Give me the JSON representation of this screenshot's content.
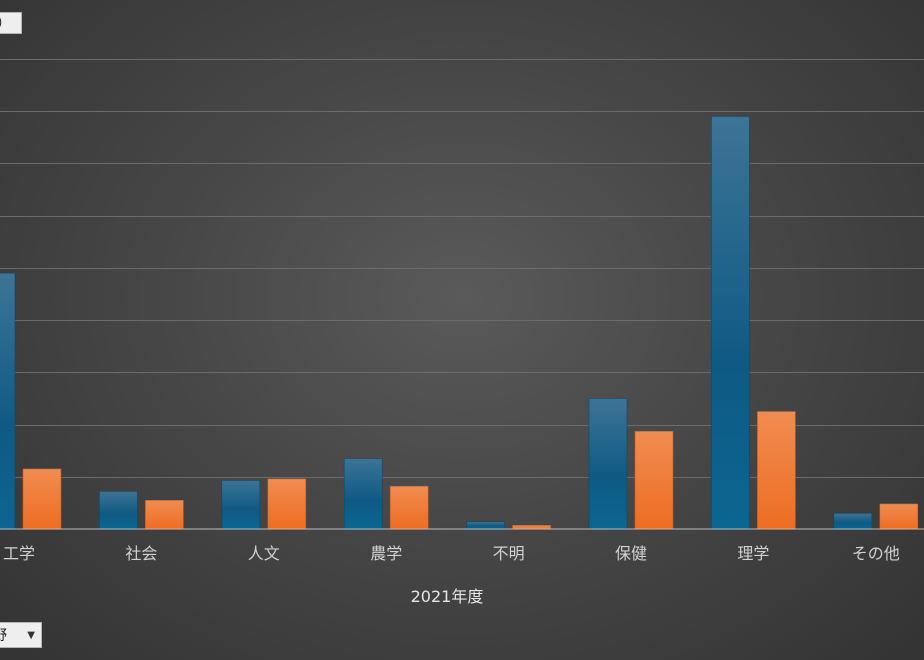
{
  "legend_fragment": "）",
  "filter_button": {
    "label": "野",
    "icon": "dropdown-arrow-icon"
  },
  "chart_data": {
    "type": "bar",
    "categories": [
      "工学",
      "社会",
      "人文",
      "農学",
      "不明",
      "保健",
      "理学",
      "その他"
    ],
    "series": [
      {
        "color": "#1a6a95",
        "values": [
          49,
          7.2,
          9.3,
          13.5,
          1.4,
          25,
          79,
          null
        ]
      },
      {
        "color": "#f07a32",
        "values": [
          11.5,
          5.5,
          9.6,
          8.2,
          0.7,
          18.7,
          22.5,
          null
        ]
      }
    ],
    "visible_last_category_values": [
      3.0,
      4.8
    ],
    "xlabel": "2021年度",
    "ylim": [
      0,
      90
    ],
    "grid": true,
    "colors": {
      "series1": "#1a6a95",
      "series2": "#f07a32",
      "grid": "#6c6c6c",
      "axis": "#bdbdbd",
      "text": "#d2d2d2"
    }
  }
}
